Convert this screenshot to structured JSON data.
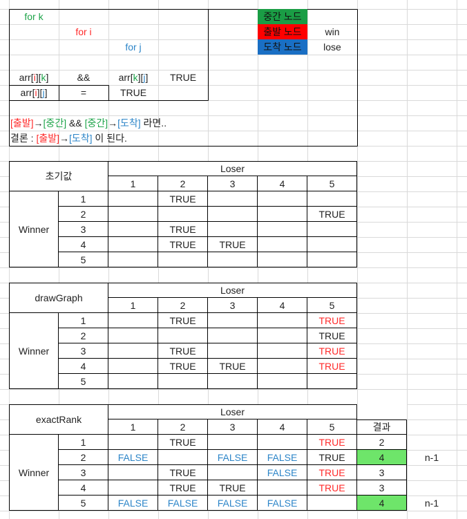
{
  "legend_box": {
    "for_k": "for k",
    "for_i": "for i",
    "for_j": "for j",
    "arr_row1": [
      {
        "t": "arr[",
        "c": ""
      },
      {
        "t": "i",
        "c": "red"
      },
      {
        "t": "][",
        "c": ""
      },
      {
        "t": "k",
        "c": "green"
      },
      {
        "t": "]",
        "c": ""
      }
    ],
    "and_op": "&&",
    "arr_row1b": [
      {
        "t": "arr[",
        "c": ""
      },
      {
        "t": "k",
        "c": "green"
      },
      {
        "t": "][",
        "c": ""
      },
      {
        "t": "j",
        "c": "blue"
      },
      {
        "t": "]",
        "c": ""
      }
    ],
    "true_1": "TRUE",
    "arr_row2": [
      {
        "t": "arr[",
        "c": ""
      },
      {
        "t": "i",
        "c": "red"
      },
      {
        "t": "][",
        "c": ""
      },
      {
        "t": "j",
        "c": "blue"
      },
      {
        "t": "]",
        "c": ""
      }
    ],
    "eq_op": "=",
    "true_2": "TRUE",
    "rule_line1": [
      {
        "t": "[출발]",
        "c": "red"
      },
      {
        "t": "→",
        "c": ""
      },
      {
        "t": "[중간]",
        "c": "green"
      },
      {
        "t": " && ",
        "c": ""
      },
      {
        "t": "[중간]",
        "c": "green"
      },
      {
        "t": "→",
        "c": ""
      },
      {
        "t": "[도착]",
        "c": "blue"
      },
      {
        "t": " 라면..",
        "c": ""
      }
    ],
    "rule_line2": [
      {
        "t": "결론 : ",
        "c": ""
      },
      {
        "t": "[출발]",
        "c": "red"
      },
      {
        "t": "→",
        "c": ""
      },
      {
        "t": "[도착]",
        "c": "blue"
      },
      {
        "t": " 이 된다.",
        "c": ""
      }
    ]
  },
  "node_legend": {
    "middle": "중간 노드",
    "start": "출발 노드",
    "end": "도착 노드",
    "win": "win",
    "lose": "lose"
  },
  "tables": [
    {
      "title": "초기값",
      "loser_label": "Loser",
      "winner_label": "Winner",
      "cols": [
        "1",
        "2",
        "3",
        "4",
        "5"
      ],
      "rows": [
        {
          "label": "1",
          "cells": [
            {
              "v": ""
            },
            {
              "v": "TRUE"
            },
            {
              "v": ""
            },
            {
              "v": ""
            },
            {
              "v": ""
            }
          ]
        },
        {
          "label": "2",
          "cells": [
            {
              "v": ""
            },
            {
              "v": ""
            },
            {
              "v": ""
            },
            {
              "v": ""
            },
            {
              "v": "TRUE"
            }
          ]
        },
        {
          "label": "3",
          "cells": [
            {
              "v": ""
            },
            {
              "v": "TRUE"
            },
            {
              "v": ""
            },
            {
              "v": ""
            },
            {
              "v": ""
            }
          ]
        },
        {
          "label": "4",
          "cells": [
            {
              "v": ""
            },
            {
              "v": "TRUE"
            },
            {
              "v": "TRUE"
            },
            {
              "v": ""
            },
            {
              "v": ""
            }
          ]
        },
        {
          "label": "5",
          "cells": [
            {
              "v": ""
            },
            {
              "v": ""
            },
            {
              "v": ""
            },
            {
              "v": ""
            },
            {
              "v": ""
            }
          ]
        }
      ]
    },
    {
      "title": "drawGraph",
      "loser_label": "Loser",
      "winner_label": "Winner",
      "cols": [
        "1",
        "2",
        "3",
        "4",
        "5"
      ],
      "rows": [
        {
          "label": "1",
          "cells": [
            {
              "v": ""
            },
            {
              "v": "TRUE"
            },
            {
              "v": ""
            },
            {
              "v": ""
            },
            {
              "v": "TRUE",
              "c": "red"
            }
          ]
        },
        {
          "label": "2",
          "cells": [
            {
              "v": ""
            },
            {
              "v": ""
            },
            {
              "v": ""
            },
            {
              "v": ""
            },
            {
              "v": "TRUE"
            }
          ]
        },
        {
          "label": "3",
          "cells": [
            {
              "v": ""
            },
            {
              "v": "TRUE"
            },
            {
              "v": ""
            },
            {
              "v": ""
            },
            {
              "v": "TRUE",
              "c": "red"
            }
          ]
        },
        {
          "label": "4",
          "cells": [
            {
              "v": ""
            },
            {
              "v": "TRUE"
            },
            {
              "v": "TRUE"
            },
            {
              "v": ""
            },
            {
              "v": "TRUE",
              "c": "red"
            }
          ]
        },
        {
          "label": "5",
          "cells": [
            {
              "v": ""
            },
            {
              "v": ""
            },
            {
              "v": ""
            },
            {
              "v": ""
            },
            {
              "v": ""
            }
          ]
        }
      ]
    },
    {
      "title": "exactRank",
      "loser_label": "Loser",
      "winner_label": "Winner",
      "result_label": "결과",
      "cols": [
        "1",
        "2",
        "3",
        "4",
        "5"
      ],
      "rows": [
        {
          "label": "1",
          "cells": [
            {
              "v": ""
            },
            {
              "v": "TRUE"
            },
            {
              "v": ""
            },
            {
              "v": ""
            },
            {
              "v": "TRUE",
              "c": "red"
            }
          ],
          "result": "2",
          "note": ""
        },
        {
          "label": "2",
          "cells": [
            {
              "v": "FALSE",
              "c": "blue"
            },
            {
              "v": ""
            },
            {
              "v": "FALSE",
              "c": "blue"
            },
            {
              "v": "FALSE",
              "c": "blue"
            },
            {
              "v": "TRUE"
            }
          ],
          "result": "4",
          "hl": true,
          "note": "n-1"
        },
        {
          "label": "3",
          "cells": [
            {
              "v": ""
            },
            {
              "v": "TRUE"
            },
            {
              "v": ""
            },
            {
              "v": "FALSE",
              "c": "blue"
            },
            {
              "v": "TRUE",
              "c": "red"
            }
          ],
          "result": "3",
          "note": ""
        },
        {
          "label": "4",
          "cells": [
            {
              "v": ""
            },
            {
              "v": "TRUE"
            },
            {
              "v": "TRUE"
            },
            {
              "v": ""
            },
            {
              "v": "TRUE",
              "c": "red"
            }
          ],
          "result": "3",
          "note": ""
        },
        {
          "label": "5",
          "cells": [
            {
              "v": "FALSE",
              "c": "blue"
            },
            {
              "v": "FALSE",
              "c": "blue"
            },
            {
              "v": "FALSE",
              "c": "blue"
            },
            {
              "v": "FALSE",
              "c": "blue"
            },
            {
              "v": ""
            }
          ],
          "result": "4",
          "hl": true,
          "note": "n-1"
        }
      ]
    }
  ]
}
